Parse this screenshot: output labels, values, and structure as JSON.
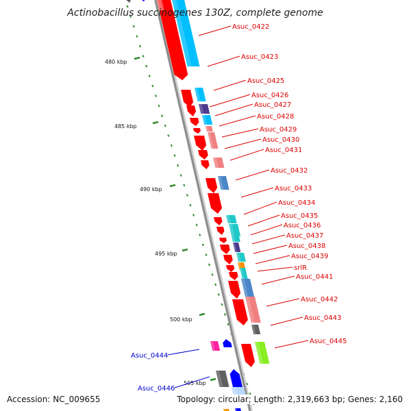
{
  "title": "Actinobacillus succinogenes 130Z, complete genome",
  "footer": {
    "accession": "Accession: NC_009655",
    "topology": "Topology: circular; Length: 2,319,663 bp; Genes: 2,160"
  },
  "colors": {
    "backbone": "#8c8c8c",
    "tick_major": "#2f8a2f",
    "tick_minor": "#2f8a2f",
    "label_forward": "#dd0000",
    "label_reverse": "#0000cc"
  },
  "ruler": [
    {
      "label": "480 kbp"
    },
    {
      "label": "485 kbp"
    },
    {
      "label": "490 kbp"
    },
    {
      "label": "495 kbp"
    },
    {
      "label": "500 kbp"
    },
    {
      "label": "505 kbp"
    }
  ],
  "labels": [
    {
      "text": "Asuc_0422",
      "strand": "forward"
    },
    {
      "text": "Asuc_0423",
      "strand": "forward"
    },
    {
      "text": "Asuc_0425",
      "strand": "forward"
    },
    {
      "text": "Asuc_0426",
      "strand": "forward"
    },
    {
      "text": "Asuc_0427",
      "strand": "forward"
    },
    {
      "text": "Asuc_0428",
      "strand": "forward"
    },
    {
      "text": "Asuc_0429",
      "strand": "forward"
    },
    {
      "text": "Asuc_0430",
      "strand": "forward"
    },
    {
      "text": "Asuc_0431",
      "strand": "forward"
    },
    {
      "text": "Asuc_0432",
      "strand": "forward"
    },
    {
      "text": "Asuc_0433",
      "strand": "forward"
    },
    {
      "text": "Asuc_0434",
      "strand": "forward"
    },
    {
      "text": "Asuc_0435",
      "strand": "forward"
    },
    {
      "text": "Asuc_0436",
      "strand": "forward"
    },
    {
      "text": "Asuc_0437",
      "strand": "forward"
    },
    {
      "text": "Asuc_0438",
      "strand": "forward"
    },
    {
      "text": "Asuc_0439",
      "strand": "forward"
    },
    {
      "text": "srlR",
      "strand": "forward"
    },
    {
      "text": "Asuc_0441",
      "strand": "forward"
    },
    {
      "text": "Asuc_0442",
      "strand": "forward"
    },
    {
      "text": "Asuc_0443",
      "strand": "forward"
    },
    {
      "text": "Asuc_0445",
      "strand": "forward"
    },
    {
      "text": "Asuc_0444",
      "strand": "reverse"
    },
    {
      "text": "Asuc_0446",
      "strand": "reverse"
    }
  ]
}
